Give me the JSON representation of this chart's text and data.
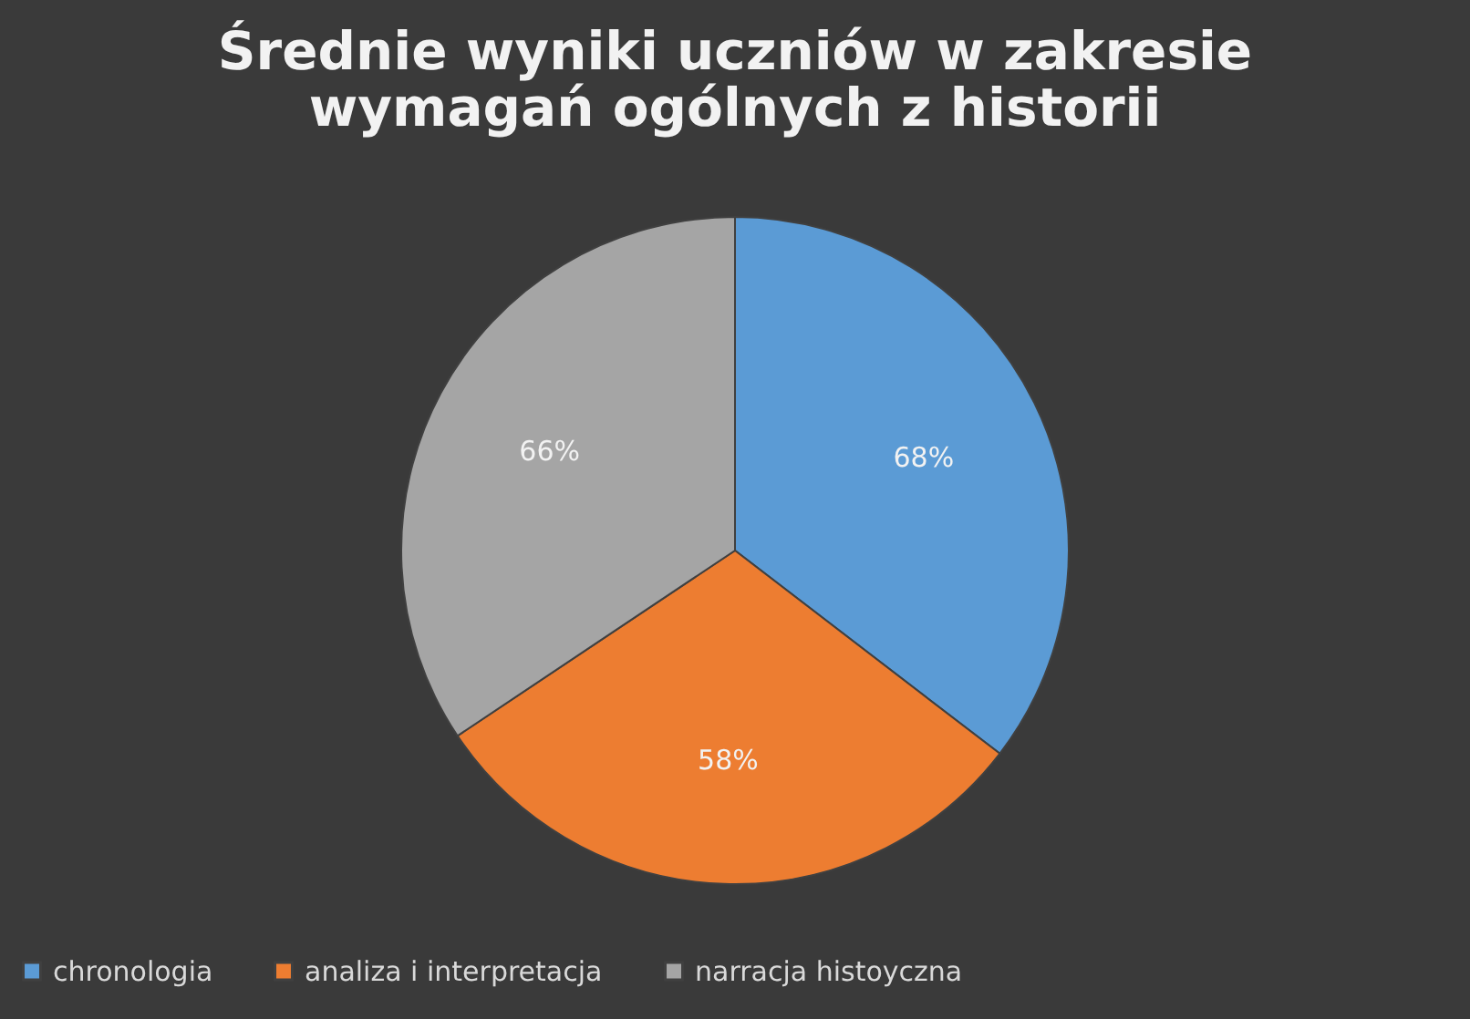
{
  "chart_data": {
    "type": "pie",
    "title": "Średnie wyniki uczniów w zakresie\nwymagań ogólnych z historii",
    "categories": [
      "chronologia",
      "analiza i interpretacja",
      "narracja histoyczna"
    ],
    "values": [
      68,
      58,
      66
    ],
    "colors": [
      "#5b9bd5",
      "#ed7d31",
      "#a5a5a5"
    ],
    "data_labels": true,
    "value_labels": [
      "68%",
      "58%",
      "66%"
    ],
    "legend": "bottom"
  }
}
